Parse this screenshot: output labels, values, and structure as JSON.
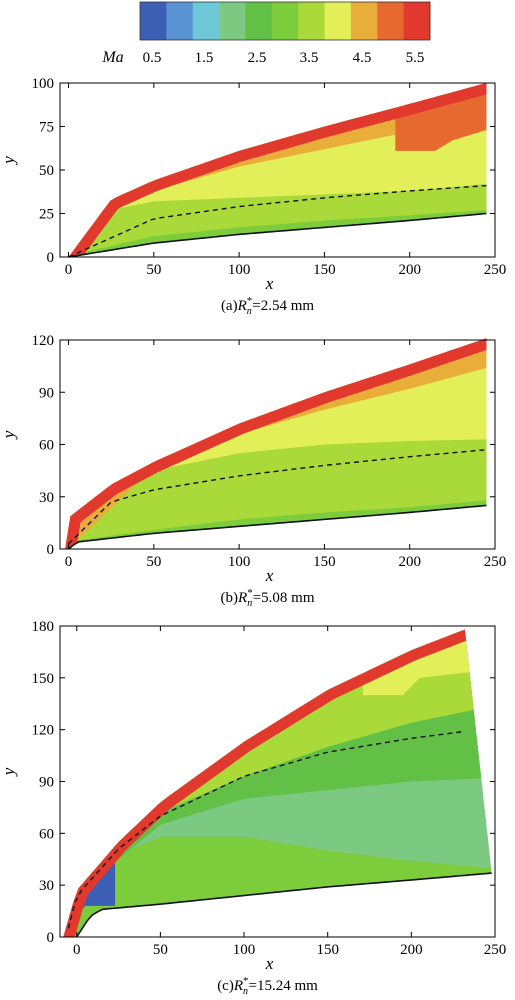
{
  "colorbar": {
    "label": "Ma",
    "tick_labels": [
      "0.5",
      "1.5",
      "2.5",
      "3.5",
      "4.5",
      "5.5"
    ],
    "colors": [
      "#3b5fb4",
      "#5a93d3",
      "#6ec8d8",
      "#7cca82",
      "#62c047",
      "#7dcc3c",
      "#a9da3a",
      "#e2ef58",
      "#e9ad3a",
      "#e66a2f",
      "#e2392f"
    ]
  },
  "chart_data": [
    {
      "type": "heatmap",
      "caption": {
        "prefix": "(a)",
        "symbol": "R",
        "sub": "n",
        "sup": "*",
        "value": "=2.54 mm"
      },
      "xlabel": "x",
      "ylabel": "y",
      "xlim": [
        -5,
        250
      ],
      "ylim": [
        0,
        100
      ],
      "xticks": [
        0,
        50,
        100,
        150,
        200,
        250
      ],
      "yticks": [
        0,
        25,
        50,
        75,
        100
      ],
      "shock": {
        "x": [
          0,
          25,
          50,
          100,
          150,
          200,
          245
        ],
        "y": [
          0,
          33,
          44,
          61,
          75,
          88,
          100
        ]
      },
      "body": {
        "x": [
          0,
          50,
          100,
          150,
          200,
          245
        ],
        "y": [
          0,
          8,
          13,
          17,
          21,
          25
        ]
      },
      "dashed_line": {
        "x": [
          0,
          50,
          100,
          150,
          200,
          245
        ],
        "y": [
          0,
          22,
          29,
          34,
          38,
          41
        ]
      },
      "regions": [
        {
          "level": "Ma 3.5–4.0",
          "x": [
            1,
            50,
            100,
            150,
            200,
            245
          ],
          "y": [
            1,
            12,
            17,
            21,
            24,
            27
          ]
        },
        {
          "level": "Ma 4.0–4.5",
          "x": [
            0,
            25,
            50,
            100,
            150,
            200,
            245
          ],
          "y": [
            0,
            27,
            32,
            34,
            36,
            38,
            42
          ]
        },
        {
          "level": "Ma 4.5–5.0",
          "x": [
            0,
            25,
            50,
            100,
            150,
            200,
            245
          ],
          "y": [
            0,
            27,
            38,
            52,
            62,
            72,
            82
          ]
        },
        {
          "level": "Ma 5.0–5.5 (core)",
          "x": [
            215,
            225,
            245
          ],
          "y": [
            61,
            67,
            73
          ]
        }
      ]
    },
    {
      "type": "heatmap",
      "caption": {
        "prefix": "(b)",
        "symbol": "R",
        "sub": "n",
        "sup": "*",
        "value": "=5.08 mm"
      },
      "xlabel": "x",
      "ylabel": "y",
      "xlim": [
        -5,
        250
      ],
      "ylim": [
        0,
        120
      ],
      "xticks": [
        0,
        50,
        100,
        150,
        200,
        250
      ],
      "yticks": [
        0,
        30,
        60,
        90,
        120
      ],
      "shock": {
        "x": [
          -2,
          0,
          25,
          50,
          100,
          150,
          200,
          245
        ],
        "y": [
          0,
          18,
          37,
          50,
          72,
          90,
          106,
          121
        ]
      },
      "body": {
        "x": [
          0,
          5,
          50,
          100,
          150,
          200,
          245
        ],
        "y": [
          0,
          4,
          9,
          13,
          17,
          21,
          25
        ]
      },
      "dashed_line": {
        "x": [
          0,
          25,
          50,
          100,
          150,
          200,
          245
        ],
        "y": [
          3,
          27,
          34,
          42,
          48,
          53,
          57
        ]
      },
      "regions": [
        {
          "level": "Ma 1.5–2.5",
          "x": [
            0,
            10,
            25
          ],
          "y": [
            5,
            14,
            12
          ]
        },
        {
          "level": "Ma 3.5–4.0",
          "x": [
            5,
            50,
            100,
            150,
            200,
            245
          ],
          "y": [
            5,
            11,
            17,
            21,
            24,
            28
          ]
        },
        {
          "level": "Ma 4.0–4.5",
          "x": [
            0,
            25,
            50,
            100,
            150,
            200,
            245
          ],
          "y": [
            0,
            33,
            45,
            55,
            60,
            62,
            63
          ]
        },
        {
          "level": "Ma 4.5–5.0",
          "x": [
            0,
            50,
            100,
            150,
            200,
            245
          ],
          "y": [
            0,
            47,
            66,
            80,
            92,
            104
          ]
        }
      ]
    },
    {
      "type": "heatmap",
      "caption": {
        "prefix": "(c)",
        "symbol": "R",
        "sub": "n",
        "sup": "*",
        "value": "=15.24 mm"
      },
      "xlabel": "x",
      "ylabel": "y",
      "xlim": [
        -10,
        250
      ],
      "ylim": [
        0,
        180
      ],
      "xticks": [
        0,
        50,
        100,
        150,
        200,
        250
      ],
      "yticks": [
        0,
        30,
        60,
        90,
        120,
        150,
        180
      ],
      "shock": {
        "x": [
          -8,
          0,
          25,
          50,
          100,
          150,
          200,
          232
        ],
        "y": [
          0,
          27,
          55,
          78,
          113,
          143,
          166,
          178
        ]
      },
      "body": {
        "x": [
          0,
          8,
          15,
          50,
          100,
          150,
          200,
          248
        ],
        "y": [
          0,
          12,
          16,
          19,
          24,
          29,
          33,
          37
        ]
      },
      "dashed_line": {
        "x": [
          -5,
          0,
          25,
          50,
          100,
          150,
          200,
          232
        ],
        "y": [
          5,
          24,
          51,
          70,
          93,
          107,
          115,
          119
        ]
      },
      "regions": [
        {
          "level": "Ma 0.5–1.5",
          "x": [
            -8,
            0,
            5
          ],
          "y": [
            0,
            12,
            18
          ]
        },
        {
          "level": "Ma 2.5–3.0",
          "x": [
            0,
            25,
            50,
            100,
            150,
            200,
            248
          ],
          "y": [
            18,
            48,
            58,
            58,
            50,
            44,
            40
          ]
        },
        {
          "level": "Ma 3.0–3.5",
          "x": [
            0,
            50,
            100,
            150,
            200,
            248
          ],
          "y": [
            25,
            65,
            80,
            85,
            90,
            92
          ]
        },
        {
          "level": "Ma 3.5–4.0",
          "x": [
            50,
            100,
            150,
            200,
            240
          ],
          "y": [
            72,
            93,
            110,
            124,
            132
          ]
        },
        {
          "level": "Ma 4.0–4.5",
          "x": [
            195,
            205,
            232
          ],
          "y": [
            140,
            150,
            153
          ]
        }
      ]
    }
  ]
}
